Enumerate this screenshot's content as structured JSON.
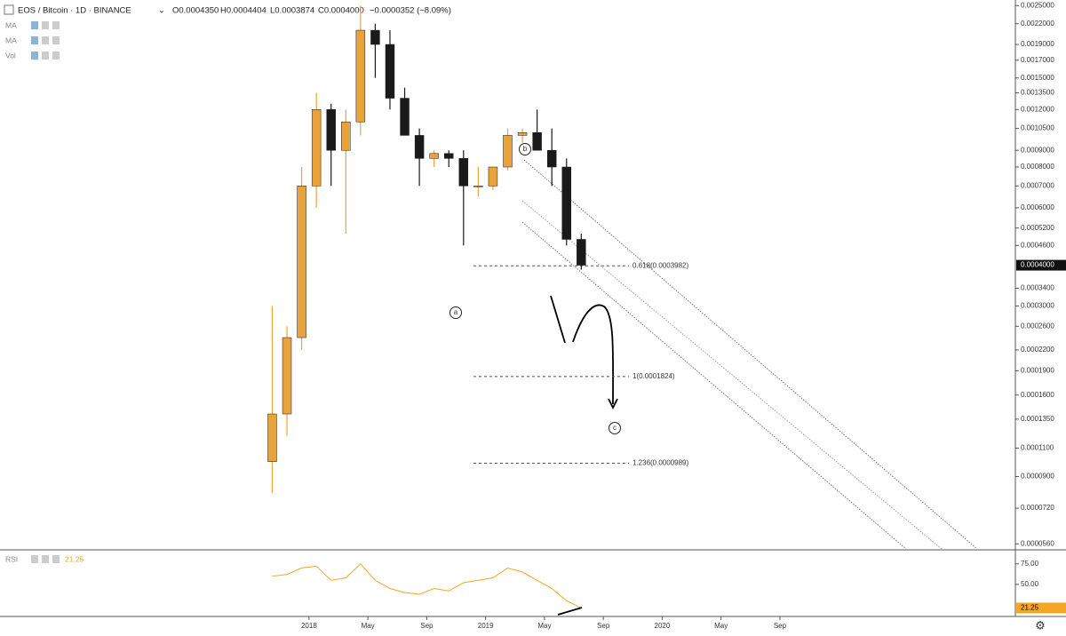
{
  "header": {
    "symbol": "EOS / Bitcoin · 1D · BINANCE",
    "open": "O0.0004350",
    "high": "H0.0004404",
    "low": "L0.0003874",
    "close": "C0.0004000",
    "change": "−0.0000352 (−8.09%)"
  },
  "indicators": [
    "MA",
    "MA",
    "Vol"
  ],
  "chart_data": {
    "type": "candlestick",
    "x": [
      "2017-10",
      "2017-11",
      "2017-12",
      "2018-01",
      "2018-02",
      "2018-03",
      "2018-04",
      "2018-05",
      "2018-06",
      "2018-07",
      "2018-08",
      "2018-09",
      "2018-10",
      "2018-11",
      "2018-12",
      "2019-01",
      "2019-02",
      "2019-03",
      "2019-04",
      "2019-05",
      "2019-06",
      "2019-07"
    ],
    "open": [
      0.0001,
      0.00014,
      0.00024,
      0.0007,
      0.0012,
      0.0009,
      0.0011,
      0.0021,
      0.0019,
      0.0013,
      0.001,
      0.00085,
      0.00088,
      0.00085,
      0.0007,
      0.0007,
      0.0008,
      0.001,
      0.00102,
      0.0009,
      0.0008,
      0.00048
    ],
    "high": [
      0.0003,
      0.00026,
      0.0008,
      0.00135,
      0.00125,
      0.0012,
      0.0025,
      0.0022,
      0.0021,
      0.0014,
      0.00105,
      0.0009,
      0.0009,
      0.0009,
      0.0008,
      0.0008,
      0.00105,
      0.00105,
      0.0012,
      0.00105,
      0.00085,
      0.0005
    ],
    "low": [
      8e-05,
      0.00012,
      0.00022,
      0.0006,
      0.0007,
      0.0005,
      0.001,
      0.0015,
      0.0012,
      0.001,
      0.0007,
      0.0008,
      0.0008,
      0.00046,
      0.00065,
      0.00068,
      0.00078,
      0.00095,
      0.0009,
      0.0007,
      0.00046,
      0.0003874
    ],
    "close": [
      0.00014,
      0.00024,
      0.0007,
      0.0012,
      0.0009,
      0.0011,
      0.0021,
      0.0019,
      0.0013,
      0.001,
      0.00085,
      0.00088,
      0.00085,
      0.0007,
      0.0007,
      0.0008,
      0.001,
      0.00102,
      0.0009,
      0.0008,
      0.00048,
      0.0004
    ],
    "log_scale": true,
    "up_color": "#e8a33d",
    "down_color": "#1a1a1a",
    "ylim": [
      5.4e-05,
      0.0026
    ],
    "yticks": [
      {
        "value": 0.0025,
        "label": "0.0025000"
      },
      {
        "value": 0.0022,
        "label": "0.0022000"
      },
      {
        "value": 0.0019,
        "label": "0.0019000"
      },
      {
        "value": 0.0017,
        "label": "0.0017000"
      },
      {
        "value": 0.0015,
        "label": "0.0015000"
      },
      {
        "value": 0.00135,
        "label": "0.0013500"
      },
      {
        "value": 0.0012,
        "label": "0.0012000"
      },
      {
        "value": 0.00105,
        "label": "0.0010500"
      },
      {
        "value": 0.0009,
        "label": "0.0009000"
      },
      {
        "value": 0.0008,
        "label": "0.0008000"
      },
      {
        "value": 0.0007,
        "label": "0.0007000"
      },
      {
        "value": 0.0006,
        "label": "0.0006000"
      },
      {
        "value": 0.00052,
        "label": "0.0005200"
      },
      {
        "value": 0.00046,
        "label": "0.0004600"
      },
      {
        "value": 0.00034,
        "label": "0.0003400"
      },
      {
        "value": 0.0003,
        "label": "0.0003000"
      },
      {
        "value": 0.00026,
        "label": "0.0002600"
      },
      {
        "value": 0.00022,
        "label": "0.0002200"
      },
      {
        "value": 0.00019,
        "label": "0.0001900"
      },
      {
        "value": 0.00016,
        "label": "0.0001600"
      },
      {
        "value": 0.000135,
        "label": "0.0001350"
      },
      {
        "value": 0.00011,
        "label": "0.0001100"
      },
      {
        "value": 9e-05,
        "label": "0.0000900"
      },
      {
        "value": 7.2e-05,
        "label": "0.0000720"
      },
      {
        "value": 5.6e-05,
        "label": "0.0000560"
      }
    ],
    "last_price": {
      "value": 0.0004,
      "label": "0.0004000"
    },
    "xlim": [
      "2016-04",
      "2022-01"
    ],
    "xticks": [
      {
        "value": "2018-01",
        "label": "2018"
      },
      {
        "value": "2018-05",
        "label": "May"
      },
      {
        "value": "2018-09",
        "label": "Sep"
      },
      {
        "value": "2019-01",
        "label": "2019"
      },
      {
        "value": "2019-05",
        "label": "May"
      },
      {
        "value": "2019-09",
        "label": "Sep"
      },
      {
        "value": "2020-01",
        "label": "2020"
      },
      {
        "value": "2020-05",
        "label": "May"
      },
      {
        "value": "2020-09",
        "label": "Sep"
      }
    ],
    "fib_levels": [
      {
        "label": "0.618(0.0003982)",
        "value": 0.0003982
      },
      {
        "label": "1(0.0001824)",
        "value": 0.0001824
      },
      {
        "label": "1.236(0.0000989)",
        "value": 9.89e-05
      }
    ],
    "waves": [
      "a",
      "b",
      "c"
    ]
  },
  "rsi": {
    "title": "RSI",
    "color": "#f5a623",
    "values": [
      60,
      62,
      70,
      72,
      55,
      58,
      75,
      55,
      45,
      40,
      38,
      45,
      42,
      52,
      55,
      58,
      70,
      65,
      55,
      45,
      30,
      21.25
    ],
    "ylim": [
      12,
      91
    ],
    "yticks": [
      {
        "value": 75,
        "label": "75.00"
      },
      {
        "value": 50,
        "label": "50.00"
      }
    ]
  }
}
